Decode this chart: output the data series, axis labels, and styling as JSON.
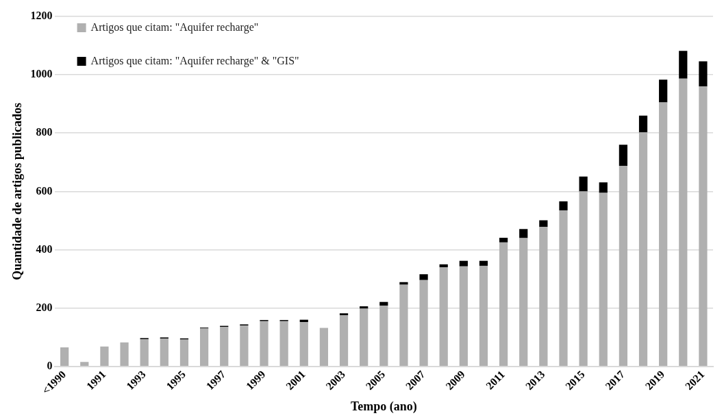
{
  "chart_data": {
    "type": "bar",
    "stacked": true,
    "xlabel": "Tempo (ano)",
    "ylabel": "Quantidade de artigos publicados",
    "categories": [
      "<1990",
      null,
      "1991",
      null,
      "1993",
      null,
      "1995",
      null,
      "1997",
      null,
      "1999",
      null,
      "2001",
      null,
      "2003",
      null,
      "2005",
      null,
      "2007",
      null,
      "2009",
      null,
      "2011",
      null,
      "2013",
      null,
      "2015",
      null,
      "2017",
      null,
      "2019",
      null,
      "2021"
    ],
    "series": [
      {
        "name": "Artigos que citam: \"Aquifer recharge\"",
        "color": "#b0b0b0",
        "values": [
          65,
          15,
          68,
          82,
          93,
          95,
          92,
          130,
          135,
          140,
          155,
          155,
          152,
          132,
          175,
          198,
          208,
          280,
          296,
          340,
          343,
          345,
          425,
          440,
          478,
          535,
          600,
          595,
          688,
          803,
          905,
          987,
          960
        ]
      },
      {
        "name": "Artigos que citam: \"Aquifer recharge\" & \"GIS\"",
        "color": "#000000",
        "values": [
          0,
          0,
          0,
          0,
          4,
          4,
          4,
          3,
          4,
          4,
          4,
          4,
          8,
          0,
          7,
          8,
          13,
          9,
          20,
          10,
          19,
          17,
          16,
          31,
          23,
          31,
          51,
          36,
          72,
          57,
          78,
          95,
          86
        ]
      }
    ],
    "ylim": [
      0,
      1200
    ],
    "yticks": [
      0,
      200,
      400,
      600,
      800,
      1000,
      1200
    ],
    "grid": "y",
    "legend": "top left"
  }
}
